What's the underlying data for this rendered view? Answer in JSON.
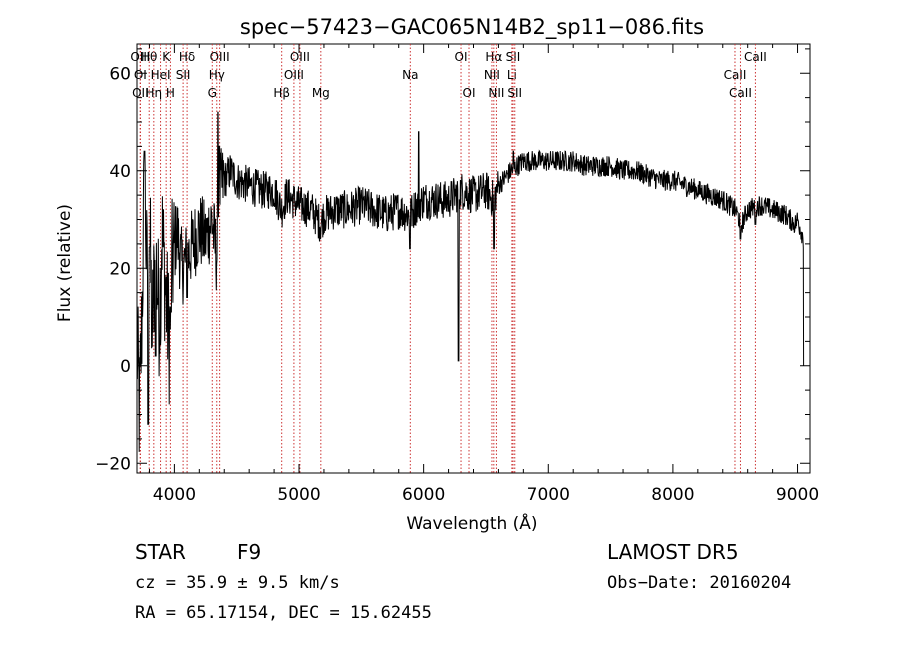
{
  "chart_data": {
    "type": "line",
    "title": "spec−57423−GAC065N14B2_sp11−086.fits",
    "xlabel": "Wavelength (Å)",
    "ylabel": "Flux (relative)",
    "xlim": [
      3700,
      9100
    ],
    "ylim": [
      -22,
      66
    ],
    "xticks": [
      4000,
      5000,
      6000,
      7000,
      8000,
      9000
    ],
    "xtick_labels": [
      "4000",
      "5000",
      "6000",
      "7000",
      "8000",
      "9000"
    ],
    "yticks": [
      -20,
      0,
      20,
      40,
      60
    ],
    "ytick_labels": [
      "−20",
      "0",
      "20",
      "40",
      "60"
    ],
    "series_color": "#000000",
    "line_color": "#cc3333",
    "spectrum_anchors": [
      [
        3700,
        5
      ],
      [
        3720,
        -10
      ],
      [
        3740,
        10
      ],
      [
        3760,
        40
      ],
      [
        3780,
        18
      ],
      [
        3800,
        30
      ],
      [
        3820,
        8
      ],
      [
        3850,
        22
      ],
      [
        3880,
        10
      ],
      [
        3900,
        28
      ],
      [
        3930,
        15
      ],
      [
        3960,
        5
      ],
      [
        3980,
        20
      ],
      [
        4020,
        28
      ],
      [
        4060,
        20
      ],
      [
        4100,
        22
      ],
      [
        4150,
        25
      ],
      [
        4200,
        28
      ],
      [
        4250,
        26
      ],
      [
        4300,
        30
      ],
      [
        4340,
        22
      ],
      [
        4360,
        36
      ],
      [
        4400,
        38
      ],
      [
        4450,
        40
      ],
      [
        4500,
        38
      ],
      [
        4600,
        37
      ],
      [
        4700,
        36
      ],
      [
        4800,
        36
      ],
      [
        4861,
        32
      ],
      [
        4900,
        35
      ],
      [
        5000,
        33
      ],
      [
        5100,
        32
      ],
      [
        5175,
        29
      ],
      [
        5200,
        31
      ],
      [
        5300,
        32
      ],
      [
        5400,
        32
      ],
      [
        5500,
        33
      ],
      [
        5600,
        32
      ],
      [
        5700,
        31
      ],
      [
        5800,
        32
      ],
      [
        5890,
        31
      ],
      [
        5950,
        33
      ],
      [
        6000,
        34
      ],
      [
        6100,
        34
      ],
      [
        6200,
        34
      ],
      [
        6300,
        36
      ],
      [
        6400,
        35
      ],
      [
        6500,
        36
      ],
      [
        6563,
        34
      ],
      [
        6600,
        37
      ],
      [
        6700,
        40
      ],
      [
        6800,
        42
      ],
      [
        6900,
        42
      ],
      [
        7000,
        42
      ],
      [
        7100,
        42
      ],
      [
        7200,
        42
      ],
      [
        7300,
        41
      ],
      [
        7400,
        41
      ],
      [
        7500,
        41
      ],
      [
        7600,
        40
      ],
      [
        7700,
        40
      ],
      [
        7800,
        39
      ],
      [
        7900,
        38
      ],
      [
        8000,
        38
      ],
      [
        8100,
        37
      ],
      [
        8200,
        36
      ],
      [
        8300,
        35
      ],
      [
        8400,
        34
      ],
      [
        8500,
        32
      ],
      [
        8550,
        29
      ],
      [
        8600,
        32
      ],
      [
        8700,
        33
      ],
      [
        8800,
        32
      ],
      [
        8900,
        31
      ],
      [
        8980,
        29
      ],
      [
        9000,
        30
      ],
      [
        9050,
        26
      ]
    ],
    "spectrum_dips": [
      [
        3760,
        -18
      ],
      [
        3790,
        -12
      ],
      [
        3820,
        4
      ],
      [
        3850,
        2
      ],
      [
        3890,
        6
      ],
      [
        3970,
        12
      ],
      [
        4102,
        14
      ],
      [
        4340,
        22
      ],
      [
        5890,
        24
      ],
      [
        5960,
        22
      ],
      [
        6280,
        1
      ],
      [
        6565,
        24
      ],
      [
        8542,
        26
      ],
      [
        8662,
        29
      ],
      [
        9050,
        0
      ]
    ],
    "spectrum_spikes": [
      [
        3760,
        44
      ],
      [
        4350,
        52
      ],
      [
        4360,
        45
      ],
      [
        5960,
        48
      ],
      [
        6720,
        44
      ]
    ],
    "line_marks": [
      {
        "label": "Hθ",
        "x": 3798,
        "row": 0
      },
      {
        "label": "OIII",
        "x": 3727,
        "row": 0
      },
      {
        "label": "K",
        "x": 3934,
        "row": 0
      },
      {
        "label": "Hδ",
        "x": 4102,
        "row": 0
      },
      {
        "label": "OIII",
        "x": 4363,
        "row": 0
      },
      {
        "label": "OIII",
        "x": 5007,
        "row": 0
      },
      {
        "label": "OI",
        "x": 6300,
        "row": 0
      },
      {
        "label": "Hα",
        "x": 6563,
        "row": 0
      },
      {
        "label": "SII",
        "x": 6717,
        "row": 0
      },
      {
        "label": "CaII",
        "x": 8662,
        "row": 0
      },
      {
        "label": "OI",
        "x": 3727,
        "row": 1
      },
      {
        "label": "HeI",
        "x": 3889,
        "row": 1
      },
      {
        "label": "SII",
        "x": 4070,
        "row": 1
      },
      {
        "label": "Hγ",
        "x": 4340,
        "row": 1
      },
      {
        "label": "OIII",
        "x": 4959,
        "row": 1
      },
      {
        "label": "Na",
        "x": 5893,
        "row": 1
      },
      {
        "label": "NII",
        "x": 6548,
        "row": 1
      },
      {
        "label": "Li",
        "x": 6708,
        "row": 1
      },
      {
        "label": "CaII",
        "x": 8498,
        "row": 1
      },
      {
        "label": "OII",
        "x": 3727,
        "row": 2
      },
      {
        "label": "Hη",
        "x": 3835,
        "row": 2
      },
      {
        "label": "H",
        "x": 3968,
        "row": 2
      },
      {
        "label": "G",
        "x": 4304,
        "row": 2
      },
      {
        "label": "Hβ",
        "x": 4861,
        "row": 2
      },
      {
        "label": "Mg",
        "x": 5175,
        "row": 2
      },
      {
        "label": "OI",
        "x": 6364,
        "row": 2
      },
      {
        "label": "NII",
        "x": 6584,
        "row": 2
      },
      {
        "label": "SII",
        "x": 6731,
        "row": 2
      },
      {
        "label": "CaII",
        "x": 8542,
        "row": 2
      }
    ]
  },
  "info": {
    "class": "STAR",
    "subclass": "F9",
    "survey": "LAMOST DR5",
    "cz_line": "cz = 35.9 ± 9.5 km/s",
    "obs_date": "Obs−Date: 20160204",
    "coords": "RA =  65.17154, DEC =  15.62455"
  }
}
